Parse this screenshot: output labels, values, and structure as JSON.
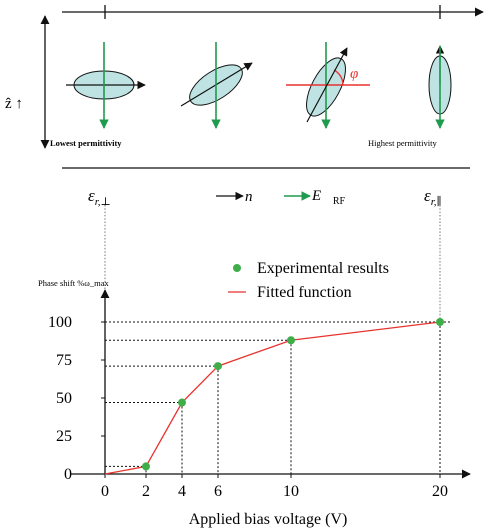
{
  "diagram": {
    "axis_z_label": "ẑ ↑",
    "lowest_label": "Lowest permittivity",
    "highest_label": "Highest permittivity",
    "phi_label": "φ",
    "eps_perp": {
      "base": "ε",
      "sub": "r,⊥"
    },
    "eps_par": {
      "base": "ε",
      "sub": "r,∥"
    },
    "legend_n": "n⃗",
    "legend_e": {
      "base": "E⃗",
      "sub": "RF"
    },
    "colors": {
      "ellipse_fill": "#bfe3e3",
      "field_arrow": "#1f9a4f",
      "n_arrow": "#111111",
      "phi": "#e8322e",
      "dotted": "#555555"
    }
  },
  "chart_data": {
    "type": "line",
    "title": "Phase shift %ω_max",
    "xlabel": "Applied bias voltage (V)",
    "ylabel": "Phase shift %ω_max",
    "x_tick_labels": [
      "0",
      "2",
      "4",
      "6",
      "10",
      "20"
    ],
    "y_tick_labels": [
      "0",
      "25",
      "50",
      "75",
      "100"
    ],
    "ylim": [
      0,
      100
    ],
    "grid": false,
    "legend_position": "top-right",
    "series": [
      {
        "name": "Experimental results",
        "kind": "scatter",
        "color": "#3fae49",
        "points": [
          [
            2,
            5
          ],
          [
            4,
            47
          ],
          [
            6,
            71
          ],
          [
            10,
            88
          ],
          [
            20,
            100
          ]
        ]
      },
      {
        "name": "Fitted function",
        "kind": "line",
        "color": "#e8322e",
        "points": [
          [
            0,
            0
          ],
          [
            2,
            5
          ],
          [
            4,
            47
          ],
          [
            6,
            71
          ],
          [
            10,
            88
          ],
          [
            20,
            100
          ]
        ]
      }
    ]
  }
}
